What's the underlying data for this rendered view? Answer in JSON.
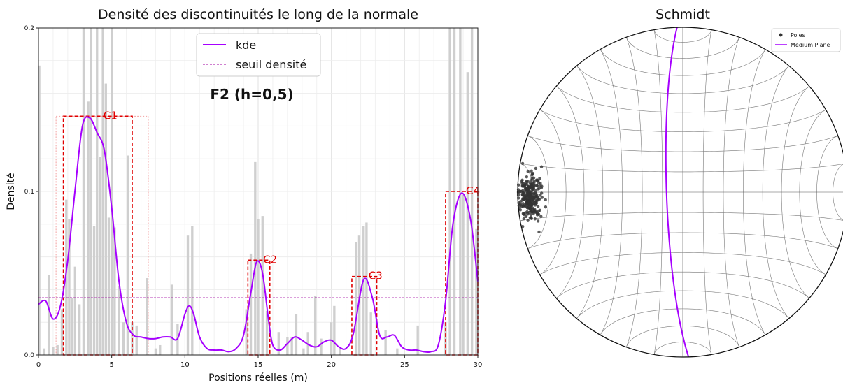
{
  "chart_data": [
    {
      "type": "bar+line",
      "title": "Densité des discontinuités le long de la normale",
      "xlabel": "Positions réelles (m)",
      "ylabel": "Densité",
      "xlim": [
        0,
        30
      ],
      "ylim": [
        0,
        0.2
      ],
      "xticks": [
        "0",
        "5",
        "10",
        "15",
        "20",
        "25",
        "30"
      ],
      "yticks": [
        "0.0",
        "0.1",
        "0.2"
      ],
      "annotation": "F2 (h=0,5)",
      "grid": true,
      "legend": {
        "position": "top-center",
        "entries": [
          {
            "label": "kde",
            "color": "#a600ff",
            "style": "solid"
          },
          {
            "label": "seuil densité",
            "color": "#a000a0",
            "style": "dashed"
          }
        ]
      },
      "threshold": 0.035,
      "bars": {
        "color": "#cfcfcf",
        "x": [
          0.05,
          0.4,
          0.7,
          1.0,
          1.3,
          1.6,
          1.9,
          2.1,
          2.3,
          2.5,
          2.8,
          3.1,
          3.4,
          3.6,
          3.8,
          4.0,
          4.2,
          4.4,
          4.6,
          4.8,
          5.0,
          5.2,
          5.5,
          5.8,
          6.1,
          6.4,
          6.7,
          7.4,
          8.0,
          8.3,
          9.1,
          9.5,
          10.2,
          10.5,
          14.2,
          14.5,
          14.8,
          15.0,
          15.3,
          15.6,
          16.4,
          17.0,
          17.3,
          17.6,
          18.1,
          18.4,
          18.9,
          19.3,
          20.0,
          20.2,
          20.6,
          21.7,
          21.9,
          22.2,
          22.4,
          22.7,
          23.7,
          24.5,
          25.9,
          27.8,
          28.1,
          28.4,
          28.8,
          29.0,
          29.3,
          29.6,
          29.9
        ],
        "values": [
          0.177,
          0.004,
          0.049,
          0.005,
          0.006,
          0.028,
          0.095,
          0.083,
          0.035,
          0.054,
          0.031,
          0.2,
          0.155,
          0.2,
          0.079,
          0.2,
          0.121,
          0.2,
          0.166,
          0.084,
          0.2,
          0.078,
          0.042,
          0.02,
          0.122,
          0.02,
          0.018,
          0.047,
          0.004,
          0.006,
          0.043,
          0.019,
          0.073,
          0.079,
          0.028,
          0.062,
          0.118,
          0.083,
          0.085,
          0.027,
          0.014,
          0.011,
          0.011,
          0.025,
          0.004,
          0.014,
          0.036,
          0.01,
          0.02,
          0.03,
          0.004,
          0.069,
          0.073,
          0.079,
          0.081,
          0.026,
          0.015,
          0.004,
          0.018,
          0.02,
          0.2,
          0.2,
          0.2,
          0.098,
          0.173,
          0.2,
          0.077
        ]
      },
      "kde": {
        "x": [
          0,
          0.5,
          1.0,
          1.5,
          2.0,
          2.5,
          3.0,
          3.5,
          4.0,
          4.5,
          5.0,
          5.5,
          6.0,
          6.5,
          7.0,
          7.5,
          8.0,
          8.5,
          9.0,
          9.5,
          10.0,
          10.3,
          10.6,
          11.0,
          11.5,
          12.0,
          12.5,
          13.0,
          13.5,
          14.0,
          14.5,
          14.9,
          15.3,
          15.7,
          16.0,
          16.5,
          17.0,
          17.5,
          18.0,
          18.5,
          19.0,
          19.5,
          20.0,
          20.5,
          21.0,
          21.5,
          22.2,
          22.8,
          23.3,
          23.8,
          24.3,
          24.8,
          25.3,
          25.8,
          26.3,
          26.8,
          27.3,
          27.8,
          28.3,
          28.9,
          29.5,
          30.0
        ],
        "values": [
          0.031,
          0.033,
          0.022,
          0.03,
          0.058,
          0.101,
          0.14,
          0.145,
          0.136,
          0.125,
          0.09,
          0.045,
          0.02,
          0.012,
          0.011,
          0.01,
          0.01,
          0.011,
          0.011,
          0.01,
          0.025,
          0.03,
          0.025,
          0.011,
          0.004,
          0.003,
          0.003,
          0.002,
          0.004,
          0.012,
          0.038,
          0.057,
          0.05,
          0.022,
          0.006,
          0.003,
          0.007,
          0.011,
          0.009,
          0.006,
          0.005,
          0.008,
          0.009,
          0.005,
          0.004,
          0.013,
          0.046,
          0.035,
          0.012,
          0.011,
          0.012,
          0.005,
          0.003,
          0.003,
          0.002,
          0.002,
          0.006,
          0.033,
          0.08,
          0.099,
          0.083,
          0.045
        ]
      },
      "clusters": [
        {
          "label": "C1",
          "x": [
            1.7,
            6.4
          ],
          "height": 0.146
        },
        {
          "label": "C2",
          "x": [
            14.3,
            15.8
          ],
          "height": 0.058
        },
        {
          "label": "C3",
          "x": [
            21.4,
            23.1
          ],
          "height": 0.048
        },
        {
          "label": "C4",
          "x": [
            27.8,
            30.0
          ],
          "height": 0.1
        }
      ],
      "secondary_box": {
        "x": [
          1.2,
          7.5
        ],
        "height": 0.146
      }
    },
    {
      "type": "stereonet",
      "title": "Schmidt",
      "legend": {
        "position": "top-right",
        "entries": [
          {
            "label": "Poles",
            "color": "#333333",
            "marker": "dot"
          },
          {
            "label": "Medium Plane",
            "color": "#a600ff",
            "marker": "line"
          }
        ]
      },
      "poles": {
        "color": "#333333",
        "trend_mean_deg": 268,
        "plunge_mean_deg": 8,
        "count": 260
      },
      "medium_plane": {
        "strike_deg": 178,
        "dip_deg": 82,
        "color": "#a600ff"
      }
    }
  ]
}
